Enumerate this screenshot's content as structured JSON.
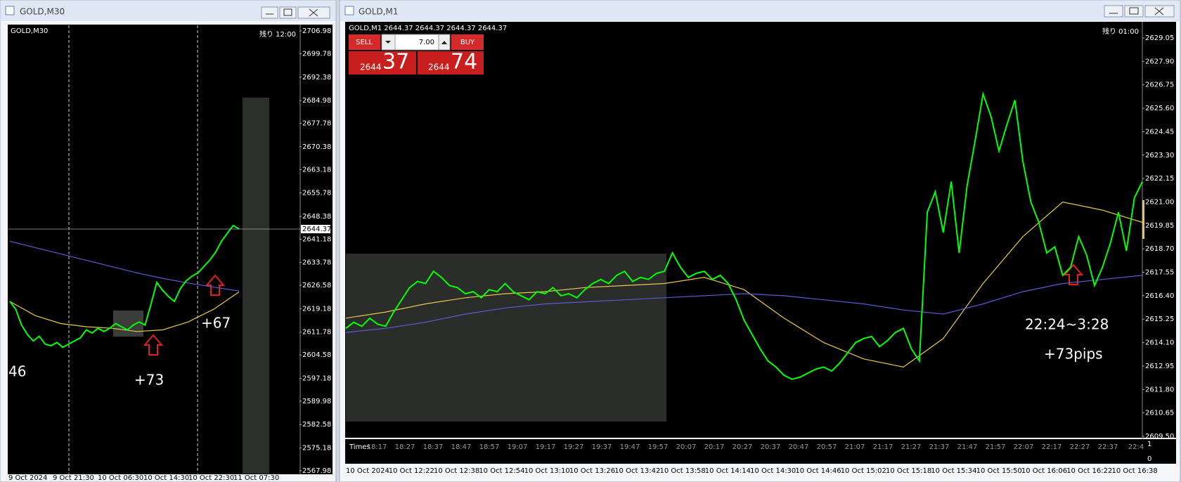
{
  "ui": {
    "left_title": "GOLD,M30",
    "right_title": "GOLD,M1",
    "sub_title": "Times",
    "sub_yticks": [
      1,
      0
    ],
    "order": {
      "sell": "SELL",
      "buy": "BUY",
      "lot": "7.00",
      "bid_big": "2644",
      "bid_small": "37",
      "ask_big": "2644",
      "ask_small": "74"
    }
  },
  "chart_data": [
    {
      "type": "line",
      "header": "GOLD,M30",
      "timer": "残り 12:00",
      "current_price": 2644.37,
      "ylim": [
        2567.98,
        2706.98
      ],
      "yticks": [
        2706.98,
        2699.78,
        2692.38,
        2684.98,
        2677.78,
        2670.38,
        2663.18,
        2655.78,
        2648.38,
        2641.18,
        2633.78,
        2626.58,
        2619.18,
        2611.78,
        2604.58,
        2597.18,
        2589.98,
        2582.58,
        2575.18,
        2567.98
      ],
      "series": [
        {
          "color": "#00ff00",
          "values": [
            2621.5,
            2619.0,
            2614.0,
            2611.0,
            2609.0,
            2610.5,
            2608.0,
            2607.5,
            2608.5,
            2607.0,
            2608.0,
            2609.0,
            2610.0,
            2612.5,
            2611.5,
            2613.0,
            2612.0,
            2613.0,
            2614.5,
            2613.5,
            2612.5,
            2614.0,
            2615.0,
            2614.0,
            2620.5,
            2627.5,
            2625.0,
            2623.0,
            2621.5,
            2625.5,
            2628.0,
            2629.5,
            2630.5,
            2632.5,
            2634.5,
            2637.0,
            2640.5,
            2643.0,
            2645.5,
            2644.37
          ]
        },
        {
          "color": "#e6c84a",
          "values": [
            2621.5,
            2617.0,
            2614.5,
            2613.5,
            2613.0,
            2612.0,
            2612.5,
            2615.0,
            2619.0,
            2624.5
          ]
        },
        {
          "color": "#5a5ad2",
          "values": [
            2640.5,
            2638.5,
            2636.5,
            2634.5,
            2632.5,
            2630.5,
            2628.8,
            2627.3,
            2626.0,
            2624.8
          ]
        }
      ],
      "time_labels": [
        "9 Oct 2024",
        "9 Oct 21:30",
        "10 Oct 06:30",
        "10 Oct 14:30",
        "10 Oct 22:30",
        "11 Oct 07:30"
      ],
      "annotations": [
        "46",
        "+73",
        "+67"
      ]
    },
    {
      "type": "line",
      "header": "GOLD,M1  2644.37 2644.37 2644.37 2644.37",
      "timer": "残り 01:00",
      "ylim": [
        2609.5,
        2629.05
      ],
      "yticks": [
        2629.05,
        {
          "value": 2627.9,
          "label": "2627.90"
        },
        2626.75,
        {
          "value": 2625.6,
          "label": "2625.60"
        },
        2624.45,
        {
          "value": 2623.3,
          "label": "2623.30"
        },
        2622.15,
        {
          "value": 2621.0,
          "label": "2621.00"
        },
        2619.85,
        {
          "value": 2618.7,
          "label": "2618.70"
        },
        2617.55,
        {
          "value": 2616.4,
          "label": "2616.40"
        },
        2615.25,
        {
          "value": 2614.1,
          "label": "2614.10"
        },
        2612.95,
        {
          "value": 2611.8,
          "label": "2611.80"
        },
        2610.65,
        {
          "value": 2609.5,
          "label": "2609.50"
        }
      ],
      "series": [
        {
          "color": "#00ff00",
          "values": [
            2614.8,
            2615.1,
            2614.9,
            2615.3,
            2615.0,
            2614.9,
            2615.6,
            2616.2,
            2616.8,
            2617.1,
            2617.0,
            2617.6,
            2617.3,
            2616.9,
            2616.8,
            2616.5,
            2616.6,
            2616.3,
            2616.7,
            2616.6,
            2617.0,
            2616.6,
            2616.4,
            2616.2,
            2616.6,
            2616.5,
            2616.8,
            2616.4,
            2616.5,
            2616.3,
            2616.7,
            2617.0,
            2617.2,
            2617.0,
            2617.4,
            2617.6,
            2617.1,
            2617.3,
            2617.2,
            2617.5,
            2617.6,
            2618.5,
            2617.8,
            2617.3,
            2617.5,
            2617.6,
            2617.2,
            2617.4,
            2617.0,
            2616.2,
            2615.2,
            2614.5,
            2613.8,
            2613.2,
            2612.9,
            2612.5,
            2612.3,
            2612.4,
            2612.6,
            2612.8,
            2612.9,
            2612.7,
            2613.1,
            2613.6,
            2614.1,
            2614.3,
            2614.4,
            2613.9,
            2614.2,
            2614.6,
            2614.8,
            2613.8,
            2613.2,
            2620.5,
            2621.5,
            2619.5,
            2622.0,
            2618.5,
            2621.8,
            2624.0,
            2626.3,
            2625.2,
            2623.5,
            2624.8,
            2626.0,
            2623.0,
            2621.0,
            2620.0,
            2618.5,
            2618.8,
            2617.4,
            2617.8,
            2619.3,
            2618.4,
            2616.9,
            2617.8,
            2619.0,
            2620.5,
            2618.6,
            2621.2,
            2622.0
          ]
        },
        {
          "color": "#e6c84a",
          "values": [
            2615.3,
            2615.6,
            2616.0,
            2616.3,
            2616.5,
            2616.6,
            2616.8,
            2616.9,
            2617.0,
            2617.3,
            2616.7,
            2615.3,
            2614.1,
            2613.3,
            2612.9,
            2614.3,
            2617.0,
            2619.3,
            2621.0,
            2620.6,
            2620.0
          ]
        },
        {
          "color": "#5a5ad2",
          "values": [
            2614.6,
            2614.8,
            2615.1,
            2615.5,
            2615.8,
            2616.0,
            2616.1,
            2616.2,
            2616.3,
            2616.4,
            2616.5,
            2616.4,
            2616.2,
            2616.0,
            2615.7,
            2615.5,
            2616.0,
            2616.6,
            2617.0,
            2617.2,
            2617.4
          ]
        }
      ],
      "time_labels_top": [
        "18:17",
        "18:27",
        "18:37",
        "18:47",
        "18:57",
        "19:07",
        "19:17",
        "19:27",
        "19:37",
        "19:47",
        "19:57",
        "20:07",
        "20:17",
        "20:27",
        "20:37",
        "20:47",
        "20:57",
        "21:07",
        "21:17",
        "21:27",
        "21:37",
        "21:47",
        "21:57",
        "22:07",
        "22:17",
        "22:27",
        "22:37",
        "22:4"
      ],
      "time_labels": [
        "10 Oct 2024",
        "10 Oct 12:22",
        "10 Oct 12:38",
        "10 Oct 12:54",
        "10 Oct 13:10",
        "10 Oct 13:26",
        "10 Oct 13:42",
        "10 Oct 13:58",
        "10 Oct 14:14",
        "10 Oct 14:30",
        "10 Oct 14:46",
        "10 Oct 15:02",
        "10 Oct 15:18",
        "10 Oct 15:34",
        "10 Oct 15:50",
        "10 Oct 16:06",
        "10 Oct 16:22",
        "10 Oct 16:38"
      ],
      "annotations": [
        "22:24~3:28",
        "+73pips"
      ]
    }
  ]
}
